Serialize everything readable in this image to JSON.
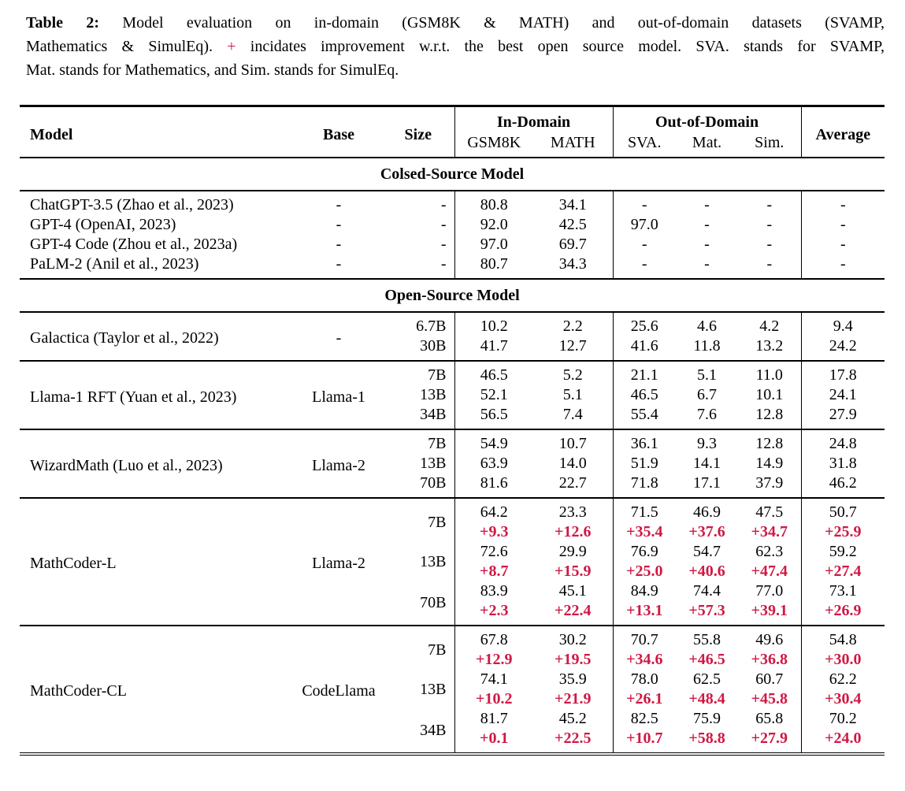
{
  "colors": {
    "delta_red": "#d01843",
    "text": "#000000",
    "rule": "#000000"
  },
  "caption": {
    "label": "Table 2:",
    "line1_rest": "Model evaluation on in-domain (GSM8K & MATH) and out-of-domain datasets (SVAMP,",
    "line2_pre": "Mathematics & SimulEq).",
    "plus": "+",
    "line2_post": "incidates improvement w.r.t. the best open source model. SVA. stands for SVAMP,",
    "line3": "Mat. stands for Mathematics, and Sim. stands for SimulEq."
  },
  "table": {
    "header": {
      "model": "Model",
      "base": "Base",
      "size": "Size",
      "in_domain": "In-Domain",
      "out_domain": "Out-of-Domain",
      "average": "Average",
      "subcols": [
        "GSM8K",
        "MATH",
        "SVA.",
        "Mat.",
        "Sim."
      ]
    },
    "sections": [
      {
        "title": "Colsed-Source Model",
        "row_separators": false,
        "groups": [
          {
            "model": "ChatGPT-3.5 (Zhao et al., 2023)",
            "base": "-",
            "entries": [
              {
                "size": "-",
                "values": [
                  "80.8",
                  "34.1",
                  "-",
                  "-",
                  "-",
                  "-"
                ]
              }
            ]
          },
          {
            "model": "GPT-4 (OpenAI, 2023)",
            "base": "-",
            "entries": [
              {
                "size": "-",
                "values": [
                  "92.0",
                  "42.5",
                  "97.0",
                  "-",
                  "-",
                  "-"
                ]
              }
            ]
          },
          {
            "model": "GPT-4 Code (Zhou et al., 2023a)",
            "base": "-",
            "entries": [
              {
                "size": "-",
                "values": [
                  "97.0",
                  "69.7",
                  "-",
                  "-",
                  "-",
                  "-"
                ]
              }
            ]
          },
          {
            "model": "PaLM-2 (Anil et al., 2023)",
            "base": "-",
            "entries": [
              {
                "size": "-",
                "values": [
                  "80.7",
                  "34.3",
                  "-",
                  "-",
                  "-",
                  "-"
                ]
              }
            ]
          }
        ]
      },
      {
        "title": "Open-Source Model",
        "row_separators": true,
        "groups": [
          {
            "model": "Galactica (Taylor et al., 2022)",
            "base": "-",
            "entries": [
              {
                "size": "6.7B",
                "values": [
                  "10.2",
                  "2.2",
                  "25.6",
                  "4.6",
                  "4.2",
                  "9.4"
                ]
              },
              {
                "size": "30B",
                "values": [
                  "41.7",
                  "12.7",
                  "41.6",
                  "11.8",
                  "13.2",
                  "24.2"
                ]
              }
            ]
          },
          {
            "model": "Llama-1 RFT (Yuan et al., 2023)",
            "base": "Llama-1",
            "entries": [
              {
                "size": "7B",
                "values": [
                  "46.5",
                  "5.2",
                  "21.1",
                  "5.1",
                  "11.0",
                  "17.8"
                ]
              },
              {
                "size": "13B",
                "values": [
                  "52.1",
                  "5.1",
                  "46.5",
                  "6.7",
                  "10.1",
                  "24.1"
                ]
              },
              {
                "size": "34B",
                "values": [
                  "56.5",
                  "7.4",
                  "55.4",
                  "7.6",
                  "12.8",
                  "27.9"
                ]
              }
            ]
          },
          {
            "model": "WizardMath (Luo et al., 2023)",
            "base": "Llama-2",
            "entries": [
              {
                "size": "7B",
                "values": [
                  "54.9",
                  "10.7",
                  "36.1",
                  "9.3",
                  "12.8",
                  "24.8"
                ]
              },
              {
                "size": "13B",
                "values": [
                  "63.9",
                  "14.0",
                  "51.9",
                  "14.1",
                  "14.9",
                  "31.8"
                ]
              },
              {
                "size": "70B",
                "values": [
                  "81.6",
                  "22.7",
                  "71.8",
                  "17.1",
                  "37.9",
                  "46.2"
                ]
              }
            ]
          },
          {
            "model": "MathCoder-L",
            "base": "Llama-2",
            "entries": [
              {
                "size": "7B",
                "values": [
                  "64.2",
                  "23.3",
                  "71.5",
                  "46.9",
                  "47.5",
                  "50.7"
                ],
                "delta": [
                  "+9.3",
                  "+12.6",
                  "+35.4",
                  "+37.6",
                  "+34.7",
                  "+25.9"
                ]
              },
              {
                "size": "13B",
                "values": [
                  "72.6",
                  "29.9",
                  "76.9",
                  "54.7",
                  "62.3",
                  "59.2"
                ],
                "delta": [
                  "+8.7",
                  "+15.9",
                  "+25.0",
                  "+40.6",
                  "+47.4",
                  "+27.4"
                ]
              },
              {
                "size": "70B",
                "values": [
                  "83.9",
                  "45.1",
                  "84.9",
                  "74.4",
                  "77.0",
                  "73.1"
                ],
                "delta": [
                  "+2.3",
                  "+22.4",
                  "+13.1",
                  "+57.3",
                  "+39.1",
                  "+26.9"
                ]
              }
            ]
          },
          {
            "model": "MathCoder-CL",
            "base": "CodeLlama",
            "entries": [
              {
                "size": "7B",
                "values": [
                  "67.8",
                  "30.2",
                  "70.7",
                  "55.8",
                  "49.6",
                  "54.8"
                ],
                "delta": [
                  "+12.9",
                  "+19.5",
                  "+34.6",
                  "+46.5",
                  "+36.8",
                  "+30.0"
                ]
              },
              {
                "size": "13B",
                "values": [
                  "74.1",
                  "35.9",
                  "78.0",
                  "62.5",
                  "60.7",
                  "62.2"
                ],
                "delta": [
                  "+10.2",
                  "+21.9",
                  "+26.1",
                  "+48.4",
                  "+45.8",
                  "+30.4"
                ]
              },
              {
                "size": "34B",
                "values": [
                  "81.7",
                  "45.2",
                  "82.5",
                  "75.9",
                  "65.8",
                  "70.2"
                ],
                "delta": [
                  "+0.1",
                  "+22.5",
                  "+10.7",
                  "+58.8",
                  "+27.9",
                  "+24.0"
                ]
              }
            ]
          }
        ]
      }
    ]
  }
}
